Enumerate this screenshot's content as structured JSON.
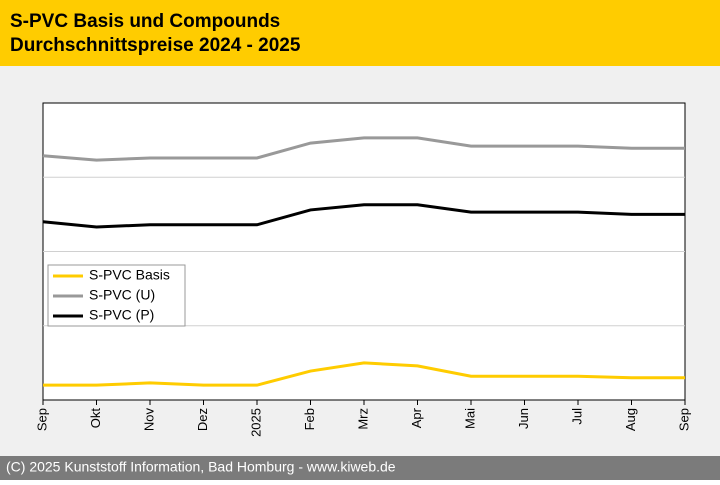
{
  "chart_data": {
    "type": "line",
    "title": "S-PVC Basis und Compounds",
    "subtitle": "Durchschnittspreise 2024 - 2025",
    "footer": "(C) 2025 Kunststoff Information, Bad Homburg - www.kiweb.de",
    "categories": [
      "Sep",
      "Okt",
      "Nov",
      "Dez",
      "2025",
      "Feb",
      "Mrz",
      "Apr",
      "Mai",
      "Jun",
      "Jul",
      "Aug",
      "Sep"
    ],
    "series": [
      {
        "name": "S-PVC Basis",
        "color": "#ffcc00",
        "values": [
          0.2,
          0.2,
          0.23,
          0.2,
          0.2,
          0.39,
          0.5,
          0.46,
          0.32,
          0.32,
          0.32,
          0.3,
          0.3
        ]
      },
      {
        "name": "S-PVC (U)",
        "color": "#999999",
        "values": [
          3.29,
          3.23,
          3.26,
          3.26,
          3.26,
          3.46,
          3.53,
          3.53,
          3.42,
          3.42,
          3.42,
          3.39,
          3.39
        ]
      },
      {
        "name": "S-PVC (P)",
        "color": "#000000",
        "values": [
          2.4,
          2.33,
          2.36,
          2.36,
          2.36,
          2.56,
          2.63,
          2.63,
          2.53,
          2.53,
          2.53,
          2.5,
          2.5
        ]
      }
    ],
    "ylim": [
      0,
      4
    ],
    "ygrid": [
      1,
      2,
      3
    ],
    "legend": "left"
  }
}
